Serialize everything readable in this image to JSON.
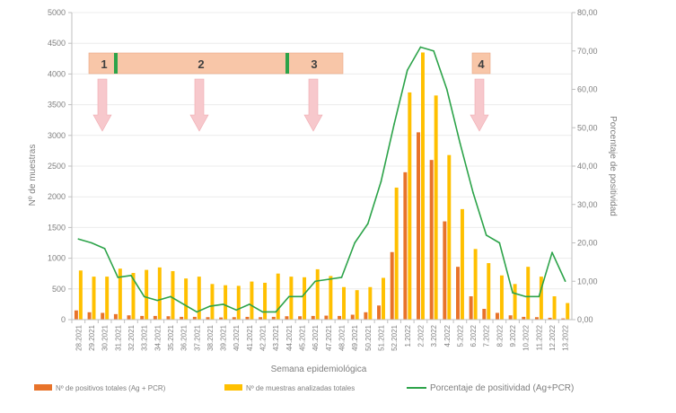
{
  "chart_data": {
    "type": "bar",
    "title": "",
    "xlabel": "Semana epidemiológica",
    "ylabel": "Nº de muestras",
    "y2label": "Porcentaje de positividad",
    "ylim": [
      0,
      5000
    ],
    "y2lim": [
      0,
      80
    ],
    "yticks": [
      "0",
      "500",
      "1000",
      "1500",
      "2000",
      "2500",
      "3000",
      "3500",
      "4000",
      "4500",
      "5000"
    ],
    "y2ticks": [
      "0,00",
      "10,00",
      "20,00",
      "30,00",
      "40,00",
      "50,00",
      "60,00",
      "70,00",
      "80,00"
    ],
    "categories": [
      "28.2021",
      "29.2021",
      "30.2021",
      "31.2021",
      "32.2021",
      "33.2021",
      "34.2021",
      "35.2021",
      "36.2021",
      "37.2021",
      "38.2021",
      "39.2021",
      "40.2021",
      "41.2021",
      "42.2021",
      "43.2021",
      "44.2021",
      "45.2021",
      "46.2021",
      "47.2021",
      "48.2021",
      "49.2021",
      "50.2021",
      "51.2021",
      "52.2021",
      "1.2022",
      "2.2022",
      "3.2022",
      "4.2022",
      "5.2022",
      "6.2022",
      "7.2022",
      "8.2022",
      "9.2022",
      "10.2022",
      "11.2022",
      "12.2022",
      "13.2022"
    ],
    "series": [
      {
        "name": "Nº de positivos totales (Ag + PCR)",
        "type": "bar",
        "axis": "left",
        "color": "#e8732a",
        "values": [
          150,
          120,
          110,
          90,
          70,
          60,
          60,
          55,
          45,
          45,
          40,
          35,
          40,
          45,
          40,
          45,
          55,
          55,
          60,
          65,
          60,
          80,
          120,
          230,
          1100,
          2400,
          3050,
          2600,
          1600,
          860,
          380,
          175,
          110,
          70,
          45,
          40,
          30,
          20
        ]
      },
      {
        "name": "Nº de muestras analizadas totales",
        "type": "bar",
        "axis": "left",
        "color": "#ffc000",
        "values": [
          800,
          700,
          700,
          830,
          760,
          810,
          850,
          790,
          670,
          700,
          580,
          560,
          550,
          620,
          600,
          750,
          700,
          690,
          820,
          710,
          530,
          480,
          530,
          680,
          2150,
          3700,
          4350,
          3650,
          2680,
          1800,
          1150,
          920,
          720,
          580,
          860,
          700,
          380,
          270
        ]
      },
      {
        "name": "Porcentaje de positividad (Ag+PCR)",
        "type": "line",
        "axis": "right",
        "color": "#2ca349",
        "values": [
          21,
          20,
          18.5,
          11,
          11.5,
          6,
          5,
          6,
          4,
          2,
          3.5,
          4,
          2.5,
          4,
          2,
          2,
          6,
          6,
          10,
          10.5,
          11,
          20,
          25,
          36,
          51,
          65,
          71,
          70,
          60,
          46,
          33,
          22,
          20,
          7,
          6,
          6,
          17.5,
          10
        ]
      }
    ],
    "annotations": [
      {
        "label": "1",
        "x": 1.3
      },
      {
        "label": "2",
        "x": 4.7
      },
      {
        "label": "3",
        "x": 8.5
      },
      {
        "label": "4",
        "x": 13.5
      }
    ],
    "legend_position": "bottom"
  }
}
